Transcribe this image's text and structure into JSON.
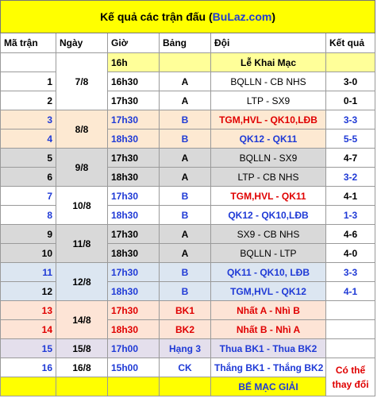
{
  "header": {
    "title": "Kế quả các trận đấu (",
    "title_link": "BuLaz.com",
    "title_end": ")"
  },
  "table": {
    "columns": [
      "Mã trận",
      "Ngày",
      "Giờ",
      "Bảng",
      "Đội",
      "Kết quả"
    ],
    "rows": [
      {
        "date": "7/8",
        "time": "16h",
        "match": "Lễ Khai Mạc"
      },
      {
        "id": 1,
        "time": "16h30",
        "group": "A",
        "match": "BQLLN - CB NHS",
        "result": "3-0"
      },
      {
        "id": 2,
        "time": "17h30",
        "group": "A",
        "match": "LTP - SX9",
        "result": "0-1"
      },
      {
        "id": 3,
        "date": "8/8",
        "time": "17h30",
        "group": "B",
        "match": "TGM,HVL - QK10,LĐB",
        "result": "3-3"
      },
      {
        "id": 4,
        "time": "18h30",
        "group": "B",
        "match": "QK12 - QK11",
        "result": "5-5"
      },
      {
        "id": 5,
        "date": "9/8",
        "time": "17h30",
        "group": "A",
        "match": "BQLLN - SX9",
        "result": "4-7"
      },
      {
        "id": 6,
        "time": "18h30",
        "group": "A",
        "match": "LTP - CB NHS",
        "result": "3-2"
      },
      {
        "id": 7,
        "date": "10/8",
        "time": "17h30",
        "group": "B",
        "match": "TGM,HVL - QK11",
        "result": "4-1"
      },
      {
        "id": 8,
        "time": "18h30",
        "group": "B",
        "match": "QK12 - QK10,LĐB",
        "result": "1-3"
      },
      {
        "id": 9,
        "date": "11/8",
        "time": "17h30",
        "group": "A",
        "match": "SX9 - CB NHS",
        "result": "4-6"
      },
      {
        "id": 10,
        "time": "18h30",
        "group": "A",
        "match": "BQLLN - LTP",
        "result": "4-0"
      },
      {
        "id": 11,
        "date": "12/8",
        "time": "17h30",
        "group": "B",
        "match": "QK11 - QK10, LĐB",
        "result": "3-3"
      },
      {
        "id": 12,
        "time": "18h30",
        "group": "B",
        "match": "TGM,HVL - QK12",
        "result": "4-1"
      },
      {
        "id": 13,
        "date": "14/8",
        "time": "17h30",
        "group": "BK1",
        "match": "Nhất A - Nhì B"
      },
      {
        "id": 14,
        "time": "18h30",
        "group": "BK2",
        "match": "Nhất B - Nhì A"
      },
      {
        "id": 15,
        "date": "15/8",
        "time": "17h00",
        "group": "Hạng 3",
        "match": "Thua BK1 - Thua BK2"
      },
      {
        "id": 16,
        "date": "16/8",
        "time": "15h00",
        "group": "CK",
        "match": "Thắng BK1 - Thắng BK2",
        "result": "Có thể thay đổi"
      },
      {
        "match": "BẾ MẠC GIẢI"
      }
    ]
  }
}
